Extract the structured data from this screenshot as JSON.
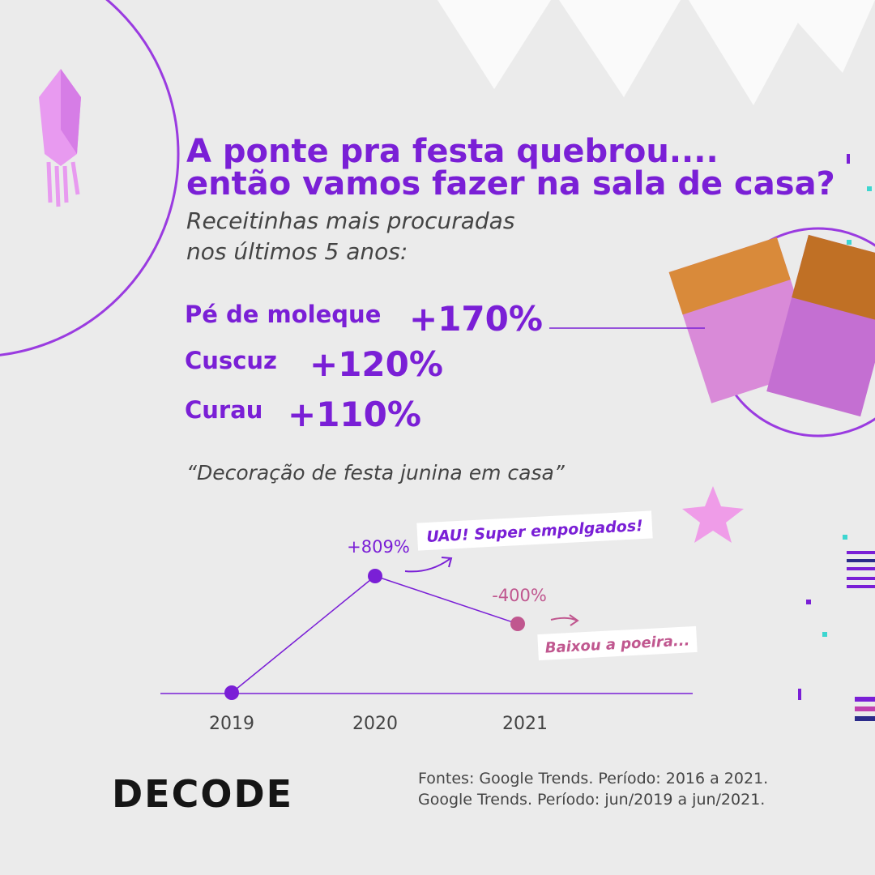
{
  "header": {
    "title_lines": [
      "A ponte pra festa quebrou....",
      "então vamos fazer na sala de casa?"
    ],
    "subtitle_lines": [
      "Receitinhas mais procuradas",
      "nos últimos 5 anos:"
    ]
  },
  "recipes": [
    {
      "name": "Pé de moleque",
      "change": "+170%"
    },
    {
      "name": "Cuscuz",
      "change": "+120%"
    },
    {
      "name": "Curau",
      "change": "+110%"
    }
  ],
  "trend": {
    "query": "“Decoração de festa junina em casa”",
    "years": [
      "2019",
      "2020",
      "2021"
    ],
    "changes": [
      "+809%",
      "-400%"
    ],
    "notes": [
      "UAU! Super empolgados!",
      "Baixou a poeira..."
    ]
  },
  "footer": {
    "logo": "DECODE",
    "sources": [
      "Fontes: Google Trends. Período: 2016 a 2021.",
      "Google Trends. Período: jun/2019 a jun/2021."
    ]
  }
}
